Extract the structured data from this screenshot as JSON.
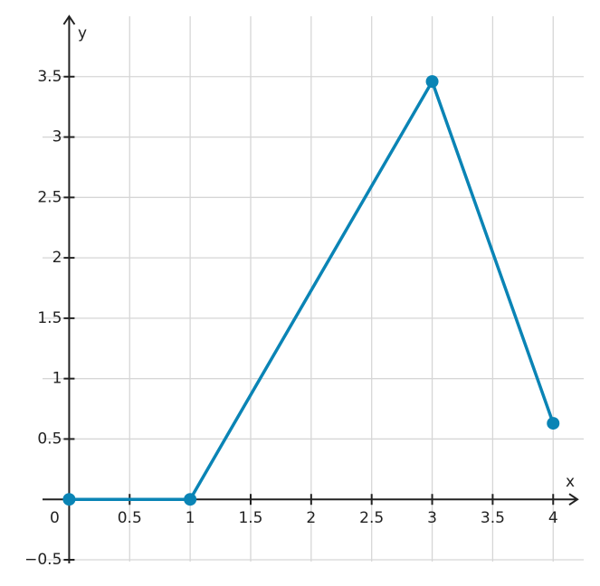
{
  "chart_data": {
    "type": "line",
    "x_label": "x",
    "y_label": "y",
    "x": [
      0,
      1,
      3,
      4
    ],
    "series": [
      {
        "color": "#0a84b5",
        "values": [
          0,
          0,
          3.46,
          0.63
        ]
      }
    ],
    "xlim": [
      -0.22,
      4.2
    ],
    "ylim": [
      -0.5,
      4
    ],
    "xticks": [
      0,
      0.5,
      1,
      1.5,
      2,
      2.5,
      3,
      3.5,
      4
    ],
    "yticks": [
      {
        "value": -0.5,
        "label": "−0.5"
      },
      0.5,
      1,
      1.5,
      2,
      2.5,
      3,
      3.5
    ],
    "grid": true
  }
}
